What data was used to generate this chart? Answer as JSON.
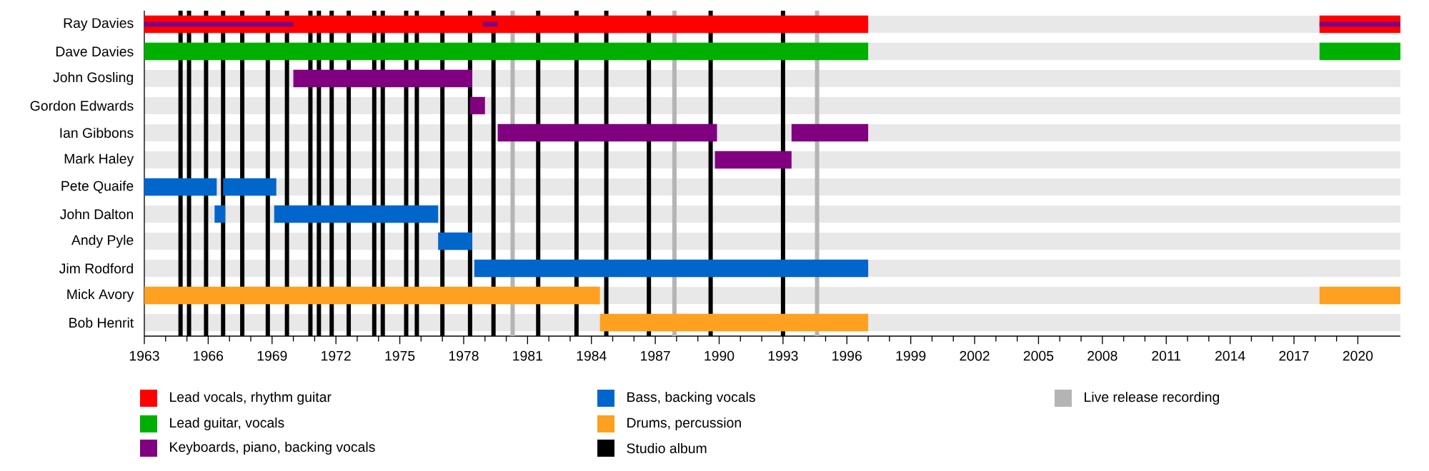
{
  "chart_data": {
    "type": "bar",
    "orientation": "horizontal",
    "categories": [
      "Ray Davies",
      "Dave Davies",
      "John Gosling",
      "Gordon Edwards",
      "Ian Gibbons",
      "Mark Haley",
      "Pete Quaife",
      "John Dalton",
      "Andy Pyle",
      "Jim Rodford",
      "Mick Avory",
      "Bob Henrit"
    ],
    "series": [
      {
        "name": "Lead vocals, rhythm guitar",
        "color": "#ff0000",
        "base": [
          1963,
          null,
          null,
          null,
          null,
          null,
          null,
          null,
          null,
          null,
          null,
          null
        ],
        "values": [
          34,
          null,
          null,
          null,
          null,
          null,
          null,
          null,
          null,
          null,
          null,
          null
        ]
      },
      {
        "name": "Lead guitar, vocals",
        "color": "#00b000",
        "base": [
          null,
          1963,
          null,
          null,
          null,
          null,
          null,
          null,
          null,
          null,
          null,
          null
        ],
        "values": [
          null,
          34,
          null,
          null,
          null,
          null,
          null,
          null,
          null,
          null,
          null,
          null
        ]
      },
      {
        "name": "Keyboards, piano, backing vocals",
        "color": "#800080",
        "base": [
          null,
          null,
          1970,
          1978.3,
          1979.6,
          1989.8,
          null,
          null,
          null,
          null,
          null,
          null
        ],
        "values": [
          null,
          null,
          8.4,
          0.7,
          10.3,
          3.6,
          null,
          null,
          null,
          null,
          null,
          null
        ]
      },
      {
        "name": "Bass, backing vocals",
        "color": "#0066cc",
        "base": [
          null,
          null,
          null,
          null,
          null,
          null,
          1963,
          1969.1,
          1976.8,
          1978.5,
          null,
          null
        ],
        "values": [
          null,
          null,
          null,
          null,
          null,
          null,
          3.4,
          7.7,
          1.6,
          18.5,
          null,
          null
        ]
      },
      {
        "name": "Drums, percussion",
        "color": "#ffa020",
        "base": [
          null,
          null,
          null,
          null,
          null,
          null,
          null,
          null,
          null,
          null,
          1963,
          1984.4
        ],
        "values": [
          null,
          null,
          null,
          null,
          null,
          null,
          null,
          null,
          null,
          null,
          21.4,
          12.6
        ]
      },
      {
        "color": "#ff0000",
        "base": [
          2018.2,
          null,
          null,
          null,
          null,
          null,
          null,
          null,
          null,
          null,
          null,
          null
        ],
        "values": [
          3.8,
          null,
          null,
          null,
          null,
          null,
          null,
          null,
          null,
          null,
          null,
          null
        ]
      },
      {
        "color": "#00b000",
        "base": [
          null,
          2018.2,
          null,
          null,
          null,
          null,
          null,
          null,
          null,
          null,
          null,
          null
        ],
        "values": [
          null,
          3.8,
          null,
          null,
          null,
          null,
          null,
          null,
          null,
          null,
          null,
          null
        ]
      },
      {
        "color": "#800080",
        "base": [
          1963,
          null,
          null,
          null,
          1993.4,
          null,
          null,
          null,
          null,
          null,
          null,
          null
        ],
        "values": [
          7,
          null,
          null,
          null,
          3.6,
          null,
          null,
          null,
          null,
          null,
          null,
          null
        ]
      },
      {
        "color": "#800080",
        "base": [
          1978.9,
          null,
          null,
          null,
          null,
          null,
          null,
          null,
          null,
          null,
          null,
          null
        ],
        "values": [
          0.7,
          null,
          null,
          null,
          null,
          null,
          null,
          null,
          null,
          null,
          null,
          null
        ]
      },
      {
        "color": "#800080",
        "base": [
          2018.2,
          null,
          null,
          null,
          null,
          null,
          null,
          null,
          null,
          null,
          null,
          null
        ],
        "values": [
          3.8,
          null,
          null,
          null,
          null,
          null,
          null,
          null,
          null,
          null,
          null,
          null
        ]
      },
      {
        "color": "#0066cc",
        "base": [
          null,
          null,
          null,
          null,
          null,
          null,
          1966.7,
          1966.3,
          null,
          null,
          null,
          null
        ],
        "values": [
          null,
          null,
          null,
          null,
          null,
          null,
          2.5,
          0.5,
          null,
          null,
          null,
          null
        ]
      },
      {
        "color": "#ffa020",
        "base": [
          null,
          null,
          null,
          null,
          null,
          null,
          null,
          null,
          null,
          null,
          2018.2,
          null
        ],
        "values": [
          null,
          null,
          null,
          null,
          null,
          null,
          null,
          null,
          null,
          null,
          3.8,
          null
        ]
      }
    ],
    "xlim": [
      1963,
      2022
    ],
    "xticks": [
      1963,
      1966,
      1969,
      1972,
      1975,
      1978,
      1981,
      1984,
      1987,
      1990,
      1993,
      1996,
      1999,
      2002,
      2005,
      2008,
      2011,
      2014,
      2017,
      2020
    ],
    "ref_lines": [
      {
        "axis": "x",
        "value": 1964.7,
        "color": "#000000",
        "label": "Studio album"
      },
      {
        "axis": "x",
        "value": 1965.1,
        "color": "#000000"
      },
      {
        "axis": "x",
        "value": 1965.9,
        "color": "#000000"
      },
      {
        "axis": "x",
        "value": 1966.7,
        "color": "#000000"
      },
      {
        "axis": "x",
        "value": 1967.6,
        "color": "#000000"
      },
      {
        "axis": "x",
        "value": 1968.8,
        "color": "#000000"
      },
      {
        "axis": "x",
        "value": 1969.7,
        "color": "#000000"
      },
      {
        "axis": "x",
        "value": 1970.8,
        "color": "#000000"
      },
      {
        "axis": "x",
        "value": 1971.2,
        "color": "#000000"
      },
      {
        "axis": "x",
        "value": 1971.8,
        "color": "#000000"
      },
      {
        "axis": "x",
        "value": 1972.6,
        "color": "#000000"
      },
      {
        "axis": "x",
        "value": 1973.8,
        "color": "#000000"
      },
      {
        "axis": "x",
        "value": 1974.2,
        "color": "#000000"
      },
      {
        "axis": "x",
        "value": 1975.3,
        "color": "#000000"
      },
      {
        "axis": "x",
        "value": 1975.8,
        "color": "#000000"
      },
      {
        "axis": "x",
        "value": 1977.0,
        "color": "#000000"
      },
      {
        "axis": "x",
        "value": 1978.3,
        "color": "#000000"
      },
      {
        "axis": "x",
        "value": 1979.4,
        "color": "#000000"
      },
      {
        "axis": "x",
        "value": 1981.5,
        "color": "#000000"
      },
      {
        "axis": "x",
        "value": 1983.3,
        "color": "#000000"
      },
      {
        "axis": "x",
        "value": 1984.7,
        "color": "#000000"
      },
      {
        "axis": "x",
        "value": 1986.7,
        "color": "#000000"
      },
      {
        "axis": "x",
        "value": 1989.6,
        "color": "#000000"
      },
      {
        "axis": "x",
        "value": 1993.0,
        "color": "#000000"
      },
      {
        "axis": "x",
        "value": 1980.3,
        "color": "#b4b4b4",
        "label": "Live release recording"
      },
      {
        "axis": "x",
        "value": 1987.9,
        "color": "#b4b4b4"
      },
      {
        "axis": "x",
        "value": 1994.6,
        "color": "#b4b4b4"
      }
    ],
    "grid": "y",
    "legend": "bottom"
  }
}
